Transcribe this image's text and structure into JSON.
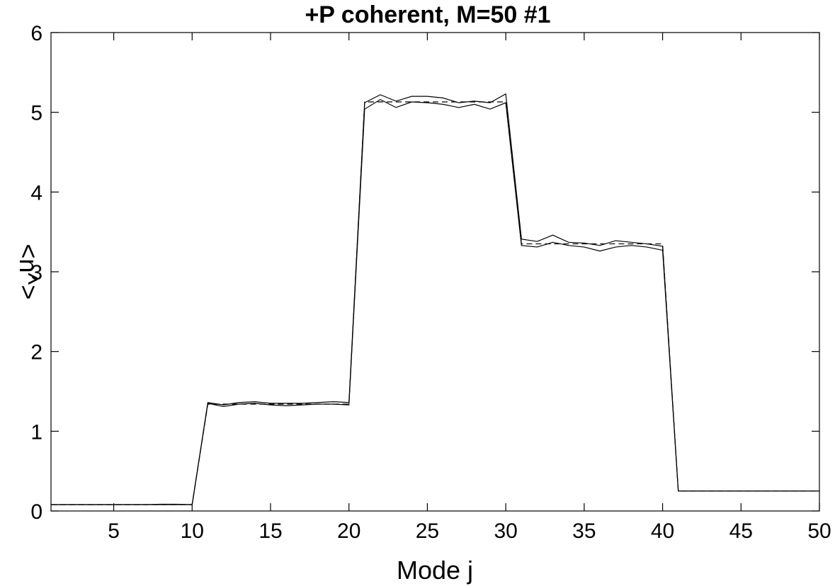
{
  "chart_data": {
    "type": "line",
    "title": "+P coherent, M=50 #1",
    "xlabel": "Mode j",
    "ylabel": "<n^>",
    "xlim": [
      1,
      50
    ],
    "ylim": [
      0,
      6
    ],
    "xticks": [
      5,
      10,
      15,
      20,
      25,
      30,
      35,
      40,
      45,
      50
    ],
    "yticks": [
      0,
      1,
      2,
      3,
      4,
      5,
      6
    ],
    "grid": false,
    "legend": "none",
    "x": [
      1,
      2,
      3,
      4,
      5,
      6,
      7,
      8,
      9,
      10,
      11,
      12,
      13,
      14,
      15,
      16,
      17,
      18,
      19,
      20,
      21,
      22,
      23,
      24,
      25,
      26,
      27,
      28,
      29,
      30,
      31,
      32,
      33,
      34,
      35,
      36,
      37,
      38,
      39,
      40,
      41,
      42,
      43,
      44,
      45,
      46,
      47,
      48,
      49,
      50
    ],
    "series": [
      {
        "style": "dashed",
        "values": [
          0.08,
          0.08,
          0.08,
          0.08,
          0.08,
          0.08,
          0.08,
          0.08,
          0.08,
          0.08,
          1.34,
          1.34,
          1.34,
          1.34,
          1.34,
          1.34,
          1.34,
          1.34,
          1.34,
          1.34,
          5.13,
          5.13,
          5.13,
          5.13,
          5.13,
          5.13,
          5.13,
          5.13,
          5.13,
          5.13,
          3.35,
          3.35,
          3.35,
          3.35,
          3.35,
          3.35,
          3.35,
          3.35,
          3.35,
          3.35,
          0.25,
          0.25,
          0.25,
          0.25,
          0.25,
          0.25,
          0.25,
          0.25,
          0.25,
          0.25
        ]
      },
      {
        "style": "solid",
        "values": [
          0.08,
          0.08,
          0.08,
          0.08,
          0.08,
          0.08,
          0.08,
          0.085,
          0.085,
          0.08,
          1.36,
          1.33,
          1.36,
          1.37,
          1.35,
          1.35,
          1.35,
          1.36,
          1.37,
          1.36,
          5.12,
          5.22,
          5.14,
          5.2,
          5.2,
          5.18,
          5.12,
          5.14,
          5.12,
          5.23,
          3.41,
          3.38,
          3.46,
          3.37,
          3.36,
          3.33,
          3.39,
          3.37,
          3.35,
          3.32,
          0.25,
          0.25,
          0.25,
          0.25,
          0.25,
          0.25,
          0.25,
          0.25,
          0.25,
          0.25
        ]
      },
      {
        "style": "solid",
        "values": [
          0.08,
          0.08,
          0.08,
          0.08,
          0.08,
          0.08,
          0.08,
          0.08,
          0.08,
          0.08,
          1.35,
          1.31,
          1.34,
          1.35,
          1.33,
          1.32,
          1.33,
          1.34,
          1.34,
          1.33,
          5.04,
          5.16,
          5.06,
          5.13,
          5.12,
          5.1,
          5.06,
          5.1,
          5.04,
          5.12,
          3.33,
          3.31,
          3.37,
          3.33,
          3.31,
          3.26,
          3.31,
          3.33,
          3.31,
          3.27,
          0.25,
          0.25,
          0.25,
          0.25,
          0.25,
          0.25,
          0.25,
          0.25,
          0.25,
          0.25
        ]
      }
    ]
  }
}
